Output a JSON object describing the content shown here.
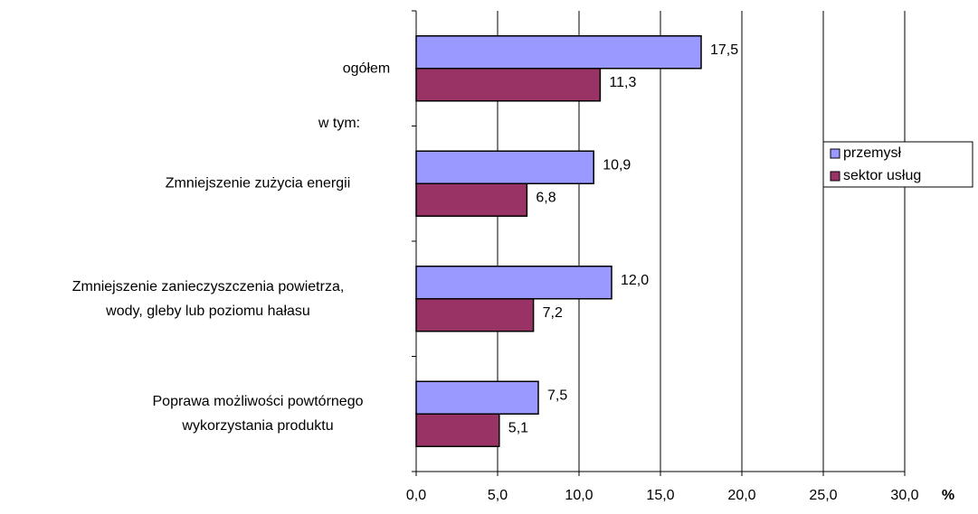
{
  "chart_data": {
    "type": "bar",
    "orientation": "horizontal",
    "categories": [
      "ogółem",
      "Zmniejszenie zużycia energii",
      "Zmniejszenie zanieczyszczenia powietrza,\nwody, gleby lub poziomu hałasu",
      "Poprawa możliwości powtórnego\nwykorzystania  produktu"
    ],
    "annotation": "w tym:",
    "x_label": "%",
    "series": [
      {
        "name": "przemysł",
        "color": "#9999ff",
        "values": [
          17.5,
          10.9,
          12.0,
          7.5
        ],
        "value_labels": [
          "17,5",
          "10,9",
          "12,0",
          "7,5"
        ]
      },
      {
        "name": "sektor usług",
        "color": "#993366",
        "values": [
          11.3,
          6.8,
          7.2,
          5.1
        ],
        "value_labels": [
          "11,3",
          "6,8",
          "7,2",
          "5,1"
        ]
      }
    ],
    "xlim": [
      0,
      30
    ],
    "xticks": [
      {
        "value": 0,
        "label": "0,0"
      },
      {
        "value": 5,
        "label": "5,0"
      },
      {
        "value": 10,
        "label": "10,0"
      },
      {
        "value": 15,
        "label": "15,0"
      },
      {
        "value": 20,
        "label": "20,0"
      },
      {
        "value": 25,
        "label": "25,0"
      },
      {
        "value": 30,
        "label": "30,0"
      }
    ],
    "grid": true,
    "legend": "right"
  }
}
